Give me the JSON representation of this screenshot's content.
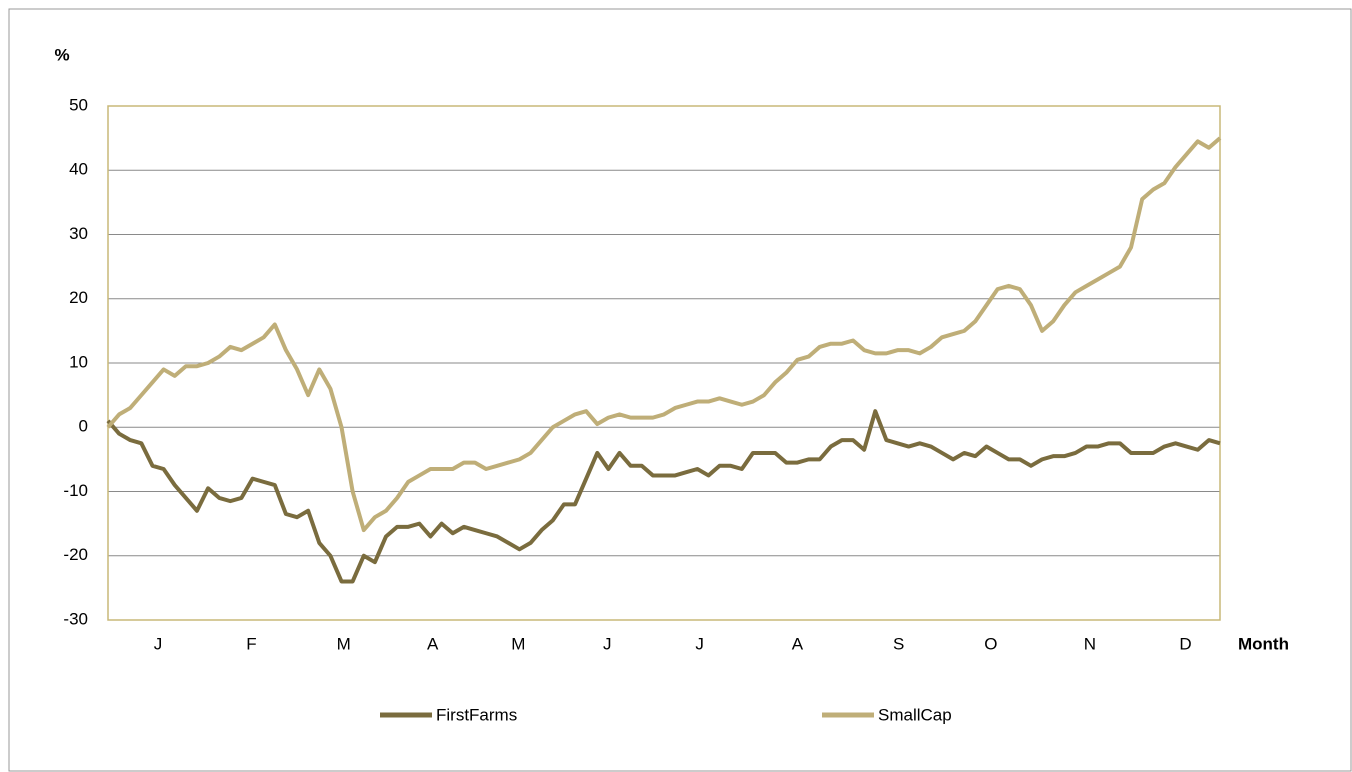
{
  "chart_data": {
    "type": "line",
    "y_label": "%",
    "x_label": "Month",
    "x": [
      0,
      1,
      2,
      3,
      4,
      5,
      6,
      7,
      8,
      9,
      10,
      11,
      12,
      13,
      14,
      15,
      16,
      17,
      18,
      19,
      20,
      21,
      22,
      23,
      24,
      25,
      26,
      27,
      28,
      29,
      30,
      31,
      32,
      33,
      34,
      35,
      36,
      37,
      38,
      39,
      40,
      41,
      42,
      43,
      44,
      45,
      46,
      47,
      48,
      49,
      50,
      51,
      52,
      53,
      54,
      55,
      56,
      57,
      58,
      59,
      60,
      61,
      62,
      63,
      64,
      65,
      66,
      67,
      68,
      69,
      70,
      71,
      72,
      73,
      74,
      75,
      76,
      77,
      78,
      79,
      80,
      81,
      82,
      83,
      84,
      85,
      86,
      87,
      88,
      89,
      90,
      91,
      92,
      93,
      94,
      95,
      96,
      97,
      98,
      99,
      100
    ],
    "series": [
      {
        "name": "FirstFarms",
        "color": "#7a6c3e",
        "values": [
          1,
          -1,
          -2,
          -2.5,
          -6,
          -6.5,
          -9,
          -11,
          -13,
          -9.5,
          -11,
          -11.5,
          -11,
          -8,
          -8.5,
          -9,
          -13.5,
          -14,
          -13,
          -18,
          -20,
          -24,
          -24,
          -20,
          -21,
          -17,
          -15.5,
          -15.5,
          -15,
          -17,
          -15,
          -16.5,
          -15.5,
          -16,
          -16.5,
          -17,
          -18,
          -19,
          -18,
          -16,
          -14.5,
          -12,
          -12,
          -8,
          -4,
          -6.5,
          -4,
          -6,
          -6,
          -7.5,
          -7.5,
          -7.5,
          -7,
          -6.5,
          -7.5,
          -6,
          -6,
          -6.5,
          -4,
          -4,
          -4,
          -5.5,
          -5.5,
          -5,
          -5,
          -3,
          -2,
          -2,
          -3.5,
          2.5,
          -2,
          -2.5,
          -3,
          -2.5,
          -3,
          -4,
          -5,
          -4,
          -4.5,
          -3,
          -4,
          -5,
          -5,
          -6,
          -5,
          -4.5,
          -4.5,
          -4,
          -3,
          -3,
          -2.5,
          -2.5,
          -4,
          -4,
          -4,
          -3,
          -2.5,
          -3,
          -3.5,
          -2,
          -2.5
        ]
      },
      {
        "name": "SmallCap",
        "color": "#bfae78",
        "values": [
          0,
          2,
          3,
          5,
          7,
          9,
          8,
          9.5,
          9.5,
          10,
          11,
          12.5,
          12,
          13,
          14,
          16,
          12,
          9,
          5,
          9,
          6,
          0,
          -10,
          -16,
          -14,
          -13,
          -11,
          -8.5,
          -7.5,
          -6.5,
          -6.5,
          -6.5,
          -5.5,
          -5.5,
          -6.5,
          -6,
          -5.5,
          -5,
          -4,
          -2,
          0,
          1,
          2,
          2.5,
          0.5,
          1.5,
          2,
          1.5,
          1.5,
          1.5,
          2,
          3,
          3.5,
          4,
          4,
          4.5,
          4,
          3.5,
          4,
          5,
          7,
          8.5,
          10.5,
          11,
          12.5,
          13,
          13,
          13.5,
          12,
          11.5,
          11.5,
          12,
          12,
          11.5,
          12.5,
          14,
          14.5,
          15,
          16.5,
          19,
          21.5,
          22,
          21.5,
          19,
          15,
          16.5,
          19,
          21,
          22,
          23,
          24,
          25,
          28,
          35.5,
          37,
          38,
          40.5,
          42.5,
          44.5,
          43.5,
          45
        ]
      }
    ],
    "xlim": [
      0,
      100
    ],
    "xticks": [
      {
        "value": 4.5,
        "label": "J"
      },
      {
        "value": 12.9,
        "label": "F"
      },
      {
        "value": 21.2,
        "label": "M"
      },
      {
        "value": 29.2,
        "label": "A"
      },
      {
        "value": 36.9,
        "label": "M"
      },
      {
        "value": 44.9,
        "label": "J"
      },
      {
        "value": 53.2,
        "label": "J"
      },
      {
        "value": 62,
        "label": "A"
      },
      {
        "value": 71.1,
        "label": "S"
      },
      {
        "value": 79.4,
        "label": "O"
      },
      {
        "value": 88.3,
        "label": "N"
      },
      {
        "value": 96.9,
        "label": "D"
      }
    ],
    "ylim": [
      -30,
      50
    ],
    "yticks": [
      -30,
      -20,
      -10,
      0,
      10,
      20,
      30,
      40,
      50
    ],
    "grid": true,
    "legend": "bottom"
  }
}
